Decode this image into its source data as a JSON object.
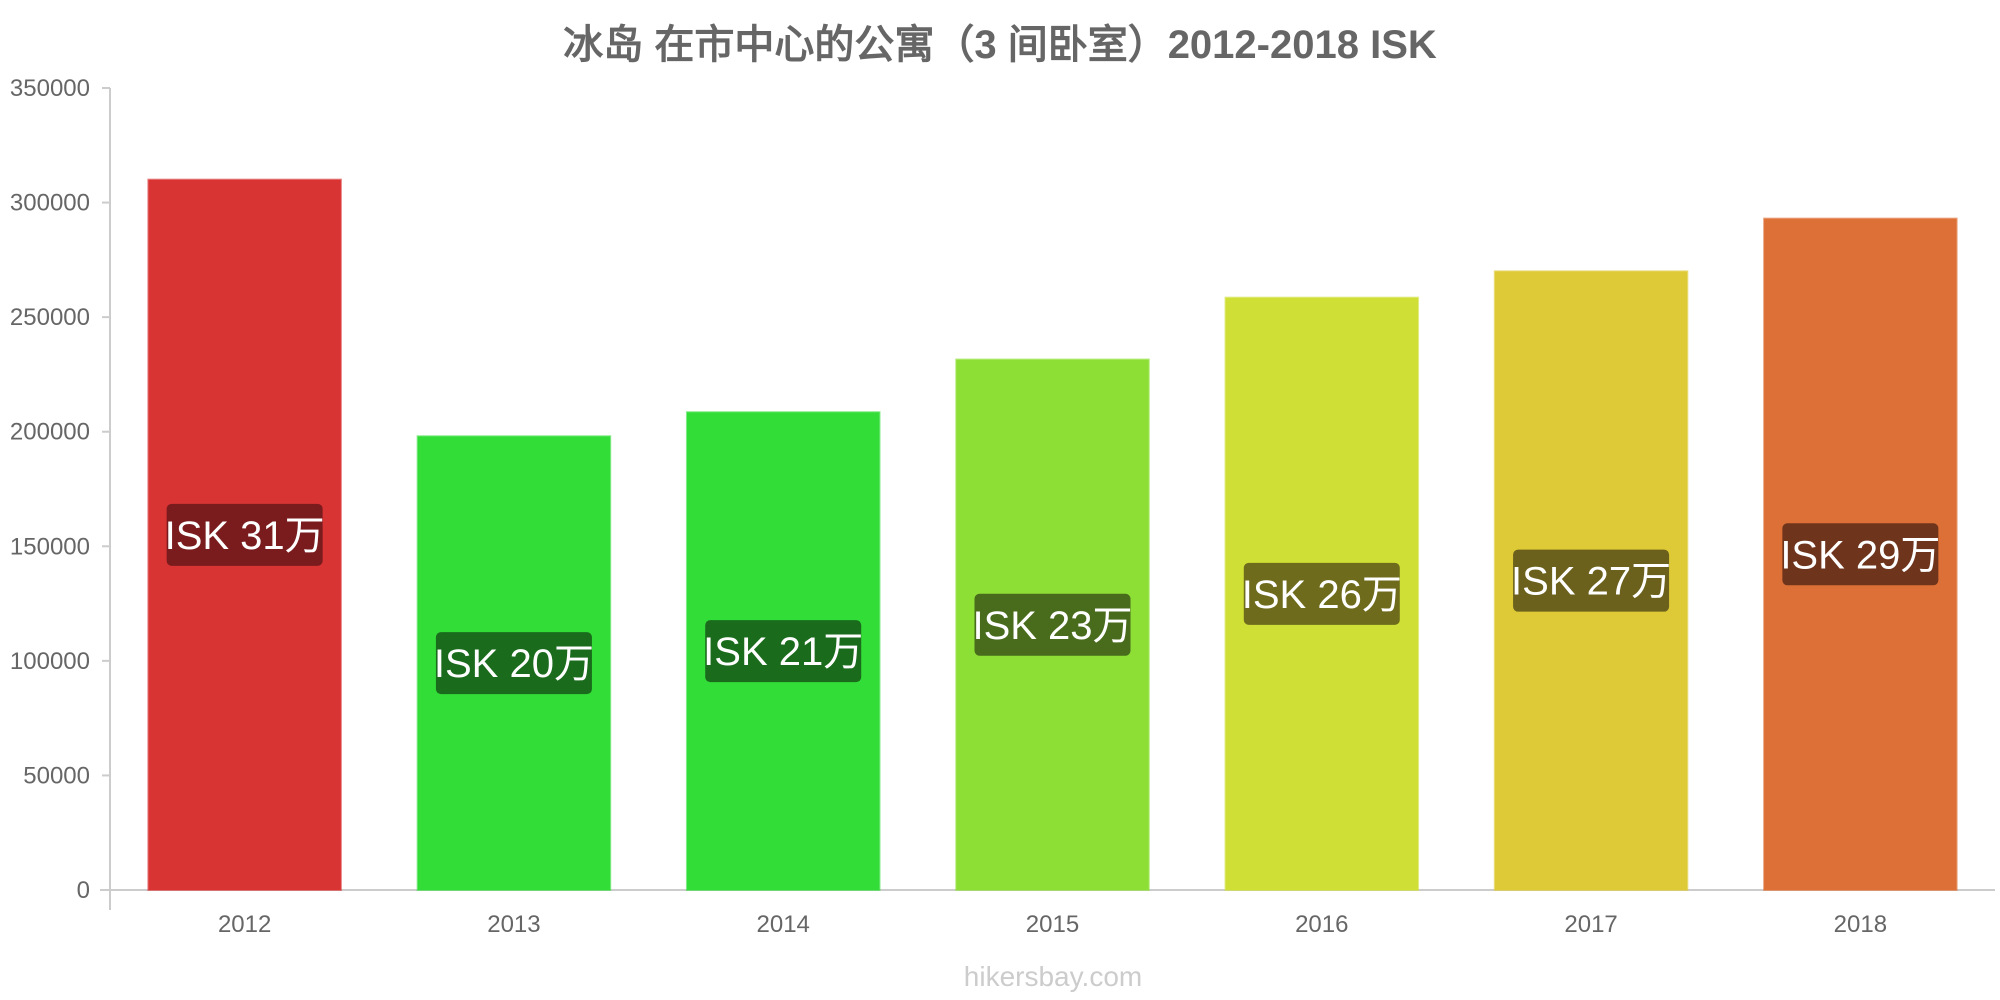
{
  "chart_data": {
    "type": "bar",
    "title": "冰岛 在市中心的公寓（3 间卧室）2012-2018 ISK",
    "categories": [
      "2012",
      "2013",
      "2014",
      "2015",
      "2016",
      "2017",
      "2018"
    ],
    "values": [
      310000,
      198000,
      208500,
      231500,
      258500,
      270000,
      293000
    ],
    "data_labels": [
      "ISK 31万",
      "ISK 20万",
      "ISK 21万",
      "ISK 23万",
      "ISK 26万",
      "ISK 27万",
      "ISK 29万"
    ],
    "bar_colors": [
      "#d93434",
      "#33dd38",
      "#33dd38",
      "#8ddf36",
      "#cfdf36",
      "#ddca36",
      "#dd7036"
    ],
    "label_bg_colors": [
      "#7a1b1e",
      "#1a6b1c",
      "#1a6b1c",
      "#486b1c",
      "#6e6b1c",
      "#6b601c",
      "#6e341c"
    ],
    "ylim": [
      0,
      350000
    ],
    "yticks": [
      "0",
      "50000",
      "100000",
      "150000",
      "200000",
      "250000",
      "300000",
      "350000"
    ],
    "xlabel": "",
    "ylabel": "",
    "grid": false,
    "legend": "none"
  },
  "watermark": "hikersbay.com"
}
